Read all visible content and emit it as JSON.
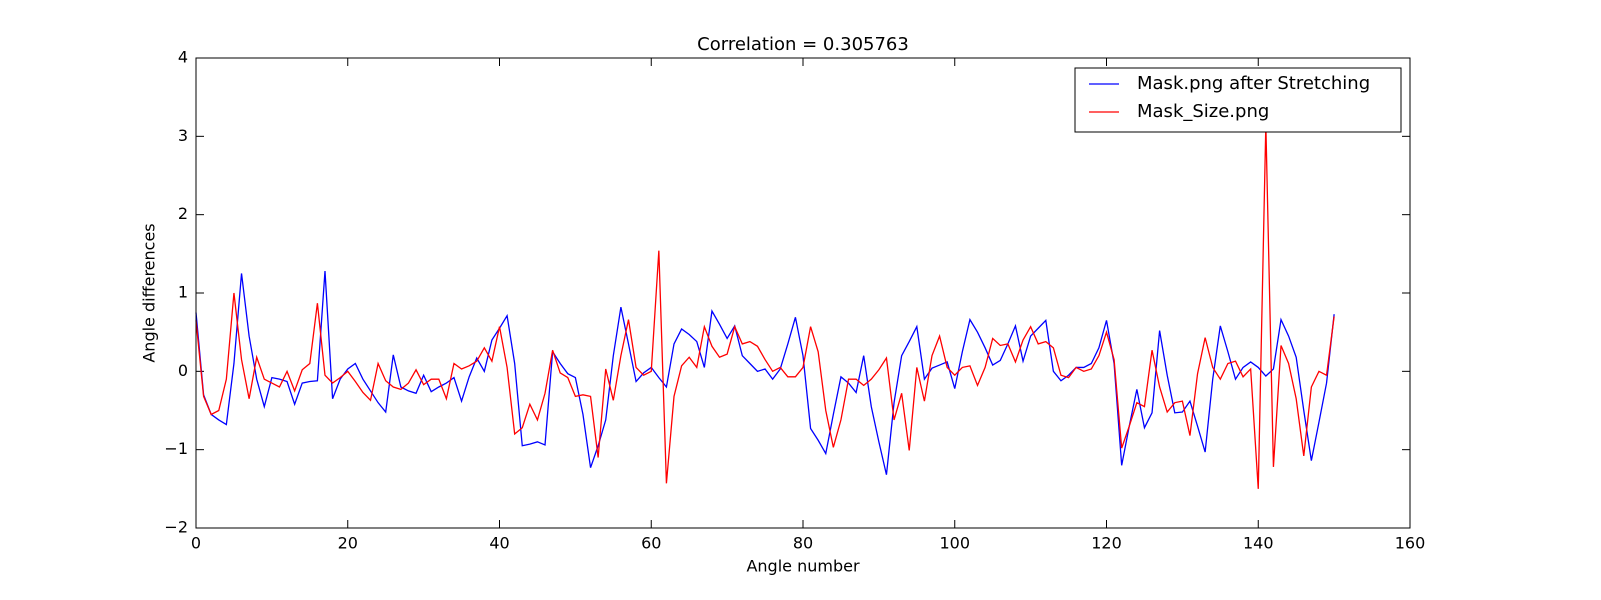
{
  "chart_data": {
    "type": "line",
    "title": "Correlation = 0.305763",
    "xlabel": "Angle number",
    "ylabel": "Angle differences",
    "x": [
      0,
      1,
      2,
      3,
      4,
      5,
      6,
      7,
      8,
      9,
      10,
      11,
      12,
      13,
      14,
      15,
      16,
      17,
      18,
      19,
      20,
      21,
      22,
      23,
      24,
      25,
      26,
      27,
      28,
      29,
      30,
      31,
      32,
      33,
      34,
      35,
      36,
      37,
      38,
      39,
      40,
      41,
      42,
      43,
      44,
      45,
      46,
      47,
      48,
      49,
      50,
      51,
      52,
      53,
      54,
      55,
      56,
      57,
      58,
      59,
      60,
      61,
      62,
      63,
      64,
      65,
      66,
      67,
      68,
      69,
      70,
      71,
      72,
      73,
      74,
      75,
      76,
      77,
      78,
      79,
      80,
      81,
      82,
      83,
      84,
      85,
      86,
      87,
      88,
      89,
      90,
      91,
      92,
      93,
      94,
      95,
      96,
      97,
      98,
      99,
      100,
      101,
      102,
      103,
      104,
      105,
      106,
      107,
      108,
      109,
      110,
      111,
      112,
      113,
      114,
      115,
      116,
      117,
      118,
      119,
      120,
      121,
      122,
      123,
      124,
      125,
      126,
      127,
      128,
      129,
      130,
      131,
      132,
      133,
      134,
      135,
      136,
      137,
      138,
      139,
      140,
      141,
      142,
      143,
      144,
      145,
      146,
      147,
      148,
      149,
      150
    ],
    "series": [
      {
        "name": "Mask.png after Stretching",
        "color": "#0000ff",
        "values": [
          0.75,
          -0.3,
          -0.55,
          -0.62,
          -0.68,
          0.1,
          1.25,
          0.45,
          -0.1,
          -0.45,
          -0.08,
          -0.1,
          -0.13,
          -0.42,
          -0.15,
          -0.13,
          -0.12,
          1.28,
          -0.35,
          -0.1,
          0.03,
          0.1,
          -0.1,
          -0.25,
          -0.4,
          -0.52,
          0.21,
          -0.2,
          -0.25,
          -0.28,
          -0.05,
          -0.26,
          -0.2,
          -0.15,
          -0.08,
          -0.38,
          -0.07,
          0.17,
          0.0,
          0.4,
          0.55,
          0.71,
          0.1,
          -0.95,
          -0.93,
          -0.9,
          -0.94,
          0.25,
          0.1,
          -0.03,
          -0.08,
          -0.55,
          -1.23,
          -0.95,
          -0.62,
          0.2,
          0.82,
          0.35,
          -0.13,
          -0.02,
          0.05,
          -0.08,
          -0.2,
          0.35,
          0.54,
          0.47,
          0.38,
          0.05,
          0.77,
          0.6,
          0.42,
          0.58,
          0.2,
          0.1,
          0.0,
          0.03,
          -0.1,
          0.03,
          0.35,
          0.69,
          0.2,
          -0.73,
          -0.88,
          -1.05,
          -0.55,
          -0.07,
          -0.15,
          -0.27,
          0.2,
          -0.45,
          -0.9,
          -1.32,
          -0.4,
          0.2,
          0.38,
          0.57,
          -0.1,
          0.04,
          0.08,
          0.12,
          -0.22,
          0.25,
          0.66,
          0.5,
          0.3,
          0.08,
          0.14,
          0.35,
          0.58,
          0.13,
          0.45,
          0.55,
          0.65,
          0.0,
          -0.12,
          -0.05,
          0.05,
          0.05,
          0.1,
          0.3,
          0.65,
          0.1,
          -1.2,
          -0.7,
          -0.23,
          -0.72,
          -0.53,
          0.52,
          -0.05,
          -0.53,
          -0.52,
          -0.38,
          -0.7,
          -1.03,
          -0.1,
          0.58,
          0.25,
          -0.1,
          0.05,
          0.12,
          0.05,
          -0.06,
          0.03,
          0.66,
          0.45,
          0.18,
          -0.5,
          -1.14,
          -0.65,
          -0.15,
          0.73
        ]
      },
      {
        "name": "Mask_Size.png",
        "color": "#ff0000",
        "values": [
          0.65,
          -0.32,
          -0.55,
          -0.5,
          -0.1,
          1.0,
          0.15,
          -0.35,
          0.18,
          -0.1,
          -0.15,
          -0.2,
          0.0,
          -0.25,
          0.02,
          0.1,
          0.87,
          -0.05,
          -0.15,
          -0.08,
          0.0,
          -0.13,
          -0.27,
          -0.37,
          0.1,
          -0.12,
          -0.2,
          -0.23,
          -0.15,
          0.02,
          -0.17,
          -0.1,
          -0.1,
          -0.35,
          0.1,
          0.03,
          0.07,
          0.13,
          0.3,
          0.13,
          0.57,
          0.05,
          -0.8,
          -0.72,
          -0.42,
          -0.62,
          -0.28,
          0.27,
          -0.02,
          -0.08,
          -0.32,
          -0.3,
          -0.32,
          -1.1,
          0.03,
          -0.37,
          0.2,
          0.66,
          0.05,
          -0.05,
          0.0,
          1.54,
          -1.43,
          -0.32,
          0.07,
          0.18,
          0.05,
          0.57,
          0.32,
          0.18,
          0.22,
          0.57,
          0.35,
          0.38,
          0.32,
          0.15,
          0.0,
          0.05,
          -0.07,
          -0.07,
          0.05,
          0.57,
          0.25,
          -0.5,
          -0.97,
          -0.62,
          -0.1,
          -0.1,
          -0.18,
          -0.1,
          0.02,
          0.17,
          -0.62,
          -0.28,
          -1.01,
          0.05,
          -0.38,
          0.2,
          0.45,
          0.05,
          -0.05,
          0.05,
          0.07,
          -0.18,
          0.05,
          0.42,
          0.33,
          0.35,
          0.12,
          0.4,
          0.57,
          0.35,
          0.38,
          0.3,
          -0.05,
          -0.08,
          0.05,
          0.0,
          0.03,
          0.2,
          0.5,
          0.15,
          -0.98,
          -0.7,
          -0.4,
          -0.45,
          0.27,
          -0.2,
          -0.52,
          -0.4,
          -0.38,
          -0.82,
          -0.03,
          0.43,
          0.05,
          -0.1,
          0.1,
          0.13,
          -0.07,
          0.03,
          -1.5,
          3.15,
          -1.22,
          0.33,
          0.1,
          -0.35,
          -1.08,
          -0.2,
          0.0,
          -0.05,
          0.7
        ]
      }
    ],
    "xlim": [
      0,
      160
    ],
    "xticks": [
      0,
      20,
      40,
      60,
      80,
      100,
      120,
      140,
      160
    ],
    "ylim": [
      -2,
      4
    ],
    "yticks": [
      {
        "value": -2,
        "label": "−2"
      },
      {
        "value": -1,
        "label": "−1"
      },
      0,
      1,
      2,
      3,
      4
    ],
    "legend": "upper right"
  }
}
